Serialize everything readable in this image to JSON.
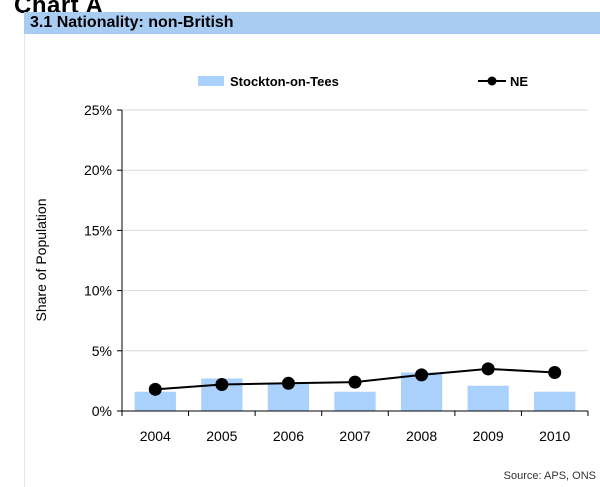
{
  "page": {
    "heading": "Chart A",
    "section_title": "3.1 Nationality: non-British",
    "source": "Source: APS, ONS"
  },
  "colors": {
    "bar": "#a9d1fb",
    "line": "#000000",
    "gridline": "#d9d9d9",
    "title_band": "#a9ccf2"
  },
  "chart_data": {
    "type": "bar",
    "categories": [
      "2004",
      "2005",
      "2006",
      "2007",
      "2008",
      "2009",
      "2010"
    ],
    "series": [
      {
        "name": "Stockton-on-Tees",
        "type": "bar",
        "values": [
          1.6,
          2.7,
          2.3,
          1.6,
          3.2,
          2.1,
          1.6
        ]
      },
      {
        "name": "NE",
        "type": "line",
        "values": [
          1.8,
          2.2,
          2.3,
          2.4,
          3.0,
          3.5,
          3.2
        ]
      }
    ],
    "title": "3.1 Nationality: non-British",
    "xlabel": "",
    "ylabel": "Share of Population",
    "ylim": [
      0,
      25
    ],
    "yticks": [
      "0%",
      "5%",
      "10%",
      "15%",
      "20%",
      "25%"
    ],
    "grid": true,
    "legend": "top"
  }
}
